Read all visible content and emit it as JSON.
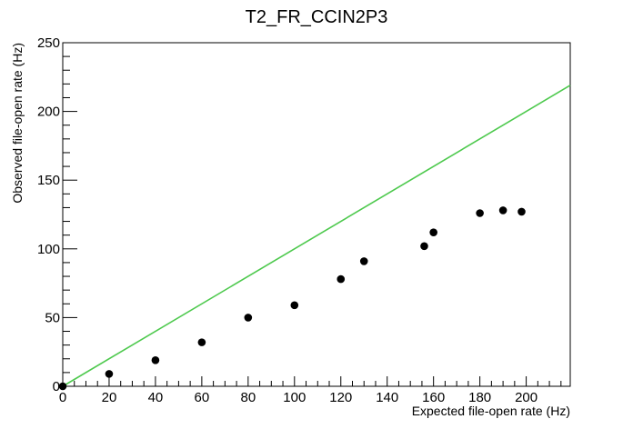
{
  "chart_data": {
    "type": "scatter",
    "title": "T2_FR_CCIN2P3",
    "xlabel": "Expected file-open rate (Hz)",
    "ylabel": "Observed file-open rate (Hz)",
    "xlim": [
      0,
      219
    ],
    "ylim": [
      0,
      250
    ],
    "x_ticks": [
      0,
      20,
      40,
      60,
      80,
      100,
      120,
      140,
      160,
      180,
      200
    ],
    "y_ticks": [
      0,
      50,
      100,
      150,
      200,
      250
    ],
    "grid": false,
    "legend": "none",
    "series": [
      {
        "marker_color": "#000000",
        "x": [
          0,
          20,
          40,
          60,
          80,
          100,
          120,
          130,
          156,
          160,
          180,
          190,
          198
        ],
        "y": [
          0,
          9,
          19,
          32,
          50,
          59,
          78,
          91,
          102,
          112,
          126,
          128,
          127
        ]
      }
    ],
    "reference_line": {
      "x": [
        0,
        219
      ],
      "y": [
        0,
        219
      ],
      "color": "#4ec94e"
    }
  }
}
